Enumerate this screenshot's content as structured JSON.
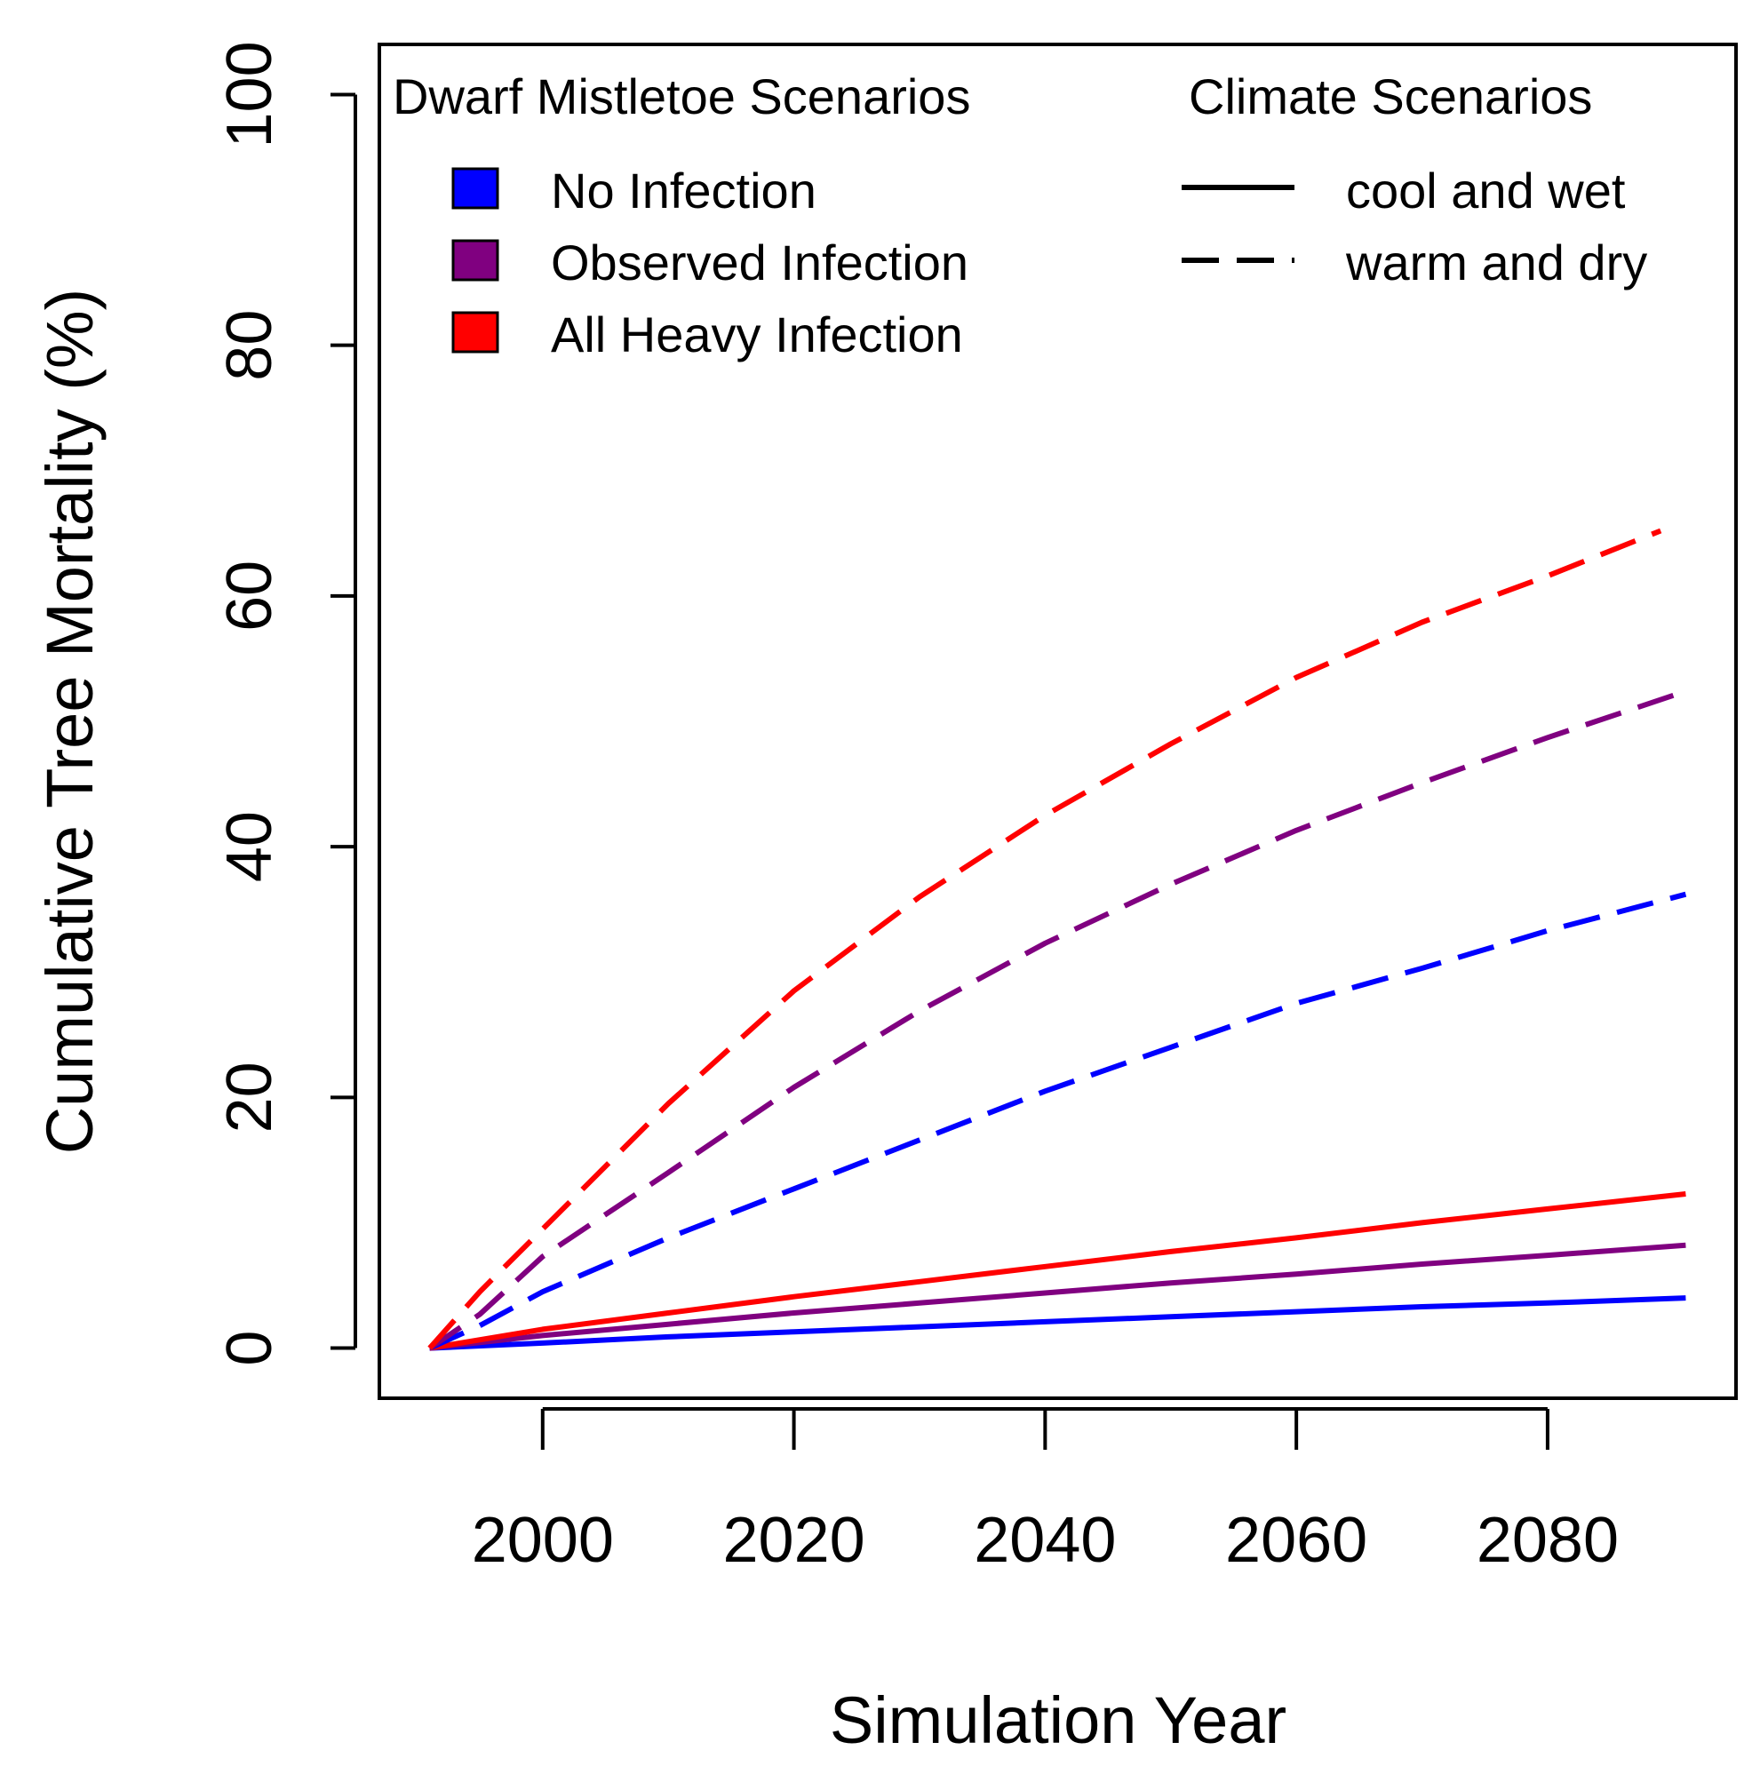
{
  "chart_data": {
    "type": "line",
    "title": "",
    "xlabel": "Simulation Year",
    "ylabel": "Cumulative Tree Mortality (%)",
    "xlim": [
      1987,
      2095
    ],
    "ylim": [
      -4,
      104
    ],
    "xticks": [
      2000,
      2020,
      2040,
      2060,
      2080
    ],
    "yticks": [
      0,
      20,
      40,
      60,
      80,
      100
    ],
    "grid": false,
    "legends": {
      "placement": "top, inside plot",
      "infection": {
        "title": "Dwarf Mistletoe Scenarios",
        "entries": [
          {
            "label": "No Infection",
            "color": "#0000ff"
          },
          {
            "label": "Observed Infection",
            "color": "#800080"
          },
          {
            "label": "All Heavy Infection",
            "color": "#ff0000"
          }
        ]
      },
      "climate": {
        "title": "Climate Scenarios",
        "entries": [
          {
            "label": "cool and wet",
            "linestyle": "solid"
          },
          {
            "label": "warm and dry",
            "linestyle": "dashed"
          }
        ]
      }
    },
    "series": [
      {
        "name": "No Infection - cool and wet",
        "color": "#0000ff",
        "linestyle": "solid",
        "x": [
          1991,
          2000,
          2010,
          2020,
          2030,
          2040,
          2050,
          2060,
          2070,
          2080,
          2091
        ],
        "y": [
          0,
          0.4,
          0.9,
          1.3,
          1.7,
          2.1,
          2.5,
          2.9,
          3.3,
          3.6,
          4.0
        ]
      },
      {
        "name": "Observed Infection - cool and wet",
        "color": "#800080",
        "linestyle": "solid",
        "x": [
          1991,
          2000,
          2010,
          2020,
          2030,
          2040,
          2050,
          2060,
          2070,
          2080,
          2091
        ],
        "y": [
          0,
          1.0,
          1.9,
          2.8,
          3.6,
          4.4,
          5.2,
          5.9,
          6.7,
          7.4,
          8.2
        ]
      },
      {
        "name": "All Heavy Infection - cool and wet",
        "color": "#ff0000",
        "linestyle": "solid",
        "x": [
          1991,
          2000,
          2010,
          2020,
          2030,
          2040,
          2050,
          2060,
          2070,
          2080,
          2091
        ],
        "y": [
          0,
          1.5,
          2.8,
          4.1,
          5.3,
          6.5,
          7.7,
          8.8,
          10.0,
          11.1,
          12.3
        ]
      },
      {
        "name": "No Infection - warm and dry",
        "color": "#0000ff",
        "linestyle": "dashed",
        "x": [
          1991,
          1995,
          2000,
          2010,
          2020,
          2030,
          2040,
          2050,
          2060,
          2070,
          2080,
          2091
        ],
        "y": [
          0,
          1.8,
          4.5,
          8.8,
          12.7,
          16.6,
          20.5,
          24.0,
          27.5,
          30.3,
          33.3,
          36.2
        ]
      },
      {
        "name": "Observed Infection - warm and dry",
        "color": "#800080",
        "linestyle": "dashed",
        "x": [
          1991,
          1995,
          2000,
          2010,
          2020,
          2030,
          2040,
          2050,
          2060,
          2070,
          2080,
          2091
        ],
        "y": [
          0,
          2.7,
          7.3,
          14.0,
          20.8,
          26.9,
          32.3,
          37.0,
          41.3,
          45.1,
          48.7,
          52.4
        ]
      },
      {
        "name": "All Heavy Infection - warm and dry",
        "color": "#ff0000",
        "linestyle": "dashed",
        "x": [
          1991,
          1995,
          2000,
          2010,
          2020,
          2030,
          2040,
          2050,
          2060,
          2070,
          2080,
          2089
        ],
        "y": [
          0,
          4.5,
          9.5,
          19.5,
          28.5,
          36.0,
          42.5,
          48.2,
          53.5,
          57.9,
          61.6,
          65.2
        ]
      }
    ]
  }
}
